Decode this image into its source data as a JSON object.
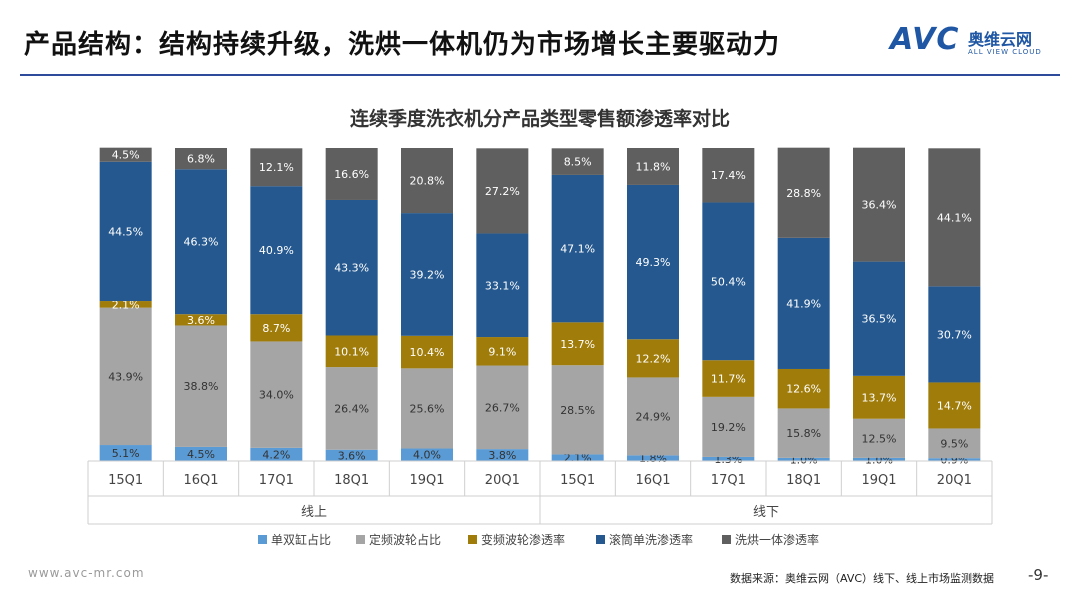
{
  "header": {
    "title": "产品结构：结构持续升级，洗烘一体机仍为市场增长主要驱动力"
  },
  "logo": {
    "mark": "AVC",
    "name_cn": "奥维云网",
    "name_en": "ALL VIEW CLOUD"
  },
  "footer": {
    "website": "www.avc-mr.com",
    "source": "数据来源：奥维云网（AVC）线下、线上市场监测数据",
    "page": "-9-"
  },
  "colors": {
    "s1": "#5b9bd5",
    "s2": "#a5a5a5",
    "s3": "#a07c0a",
    "s4": "#25588f",
    "s5": "#5f5f5f",
    "brand": "#1f57a4"
  },
  "chart_data": {
    "type": "bar",
    "stacked": true,
    "title": "连续季度洗衣机分产品类型零售额渗透率对比",
    "categories": [
      "15Q1",
      "16Q1",
      "17Q1",
      "18Q1",
      "19Q1",
      "20Q1",
      "15Q1",
      "16Q1",
      "17Q1",
      "18Q1",
      "19Q1",
      "20Q1"
    ],
    "groups": [
      {
        "label": "线上",
        "count": 6
      },
      {
        "label": "线下",
        "count": 6
      }
    ],
    "ylim": [
      0,
      100
    ],
    "legend_position": "bottom",
    "series": [
      {
        "name": "单双缸占比",
        "color": "#5b9bd5",
        "values": [
          5.1,
          4.5,
          4.2,
          3.6,
          4.0,
          3.8,
          2.1,
          1.8,
          1.3,
          1.0,
          1.0,
          0.9
        ]
      },
      {
        "name": "定频波轮占比",
        "color": "#a5a5a5",
        "values": [
          43.9,
          38.8,
          34.0,
          26.4,
          25.6,
          26.7,
          28.5,
          24.9,
          19.2,
          15.8,
          12.5,
          9.5
        ]
      },
      {
        "name": "变频波轮渗透率",
        "color": "#a07c0a",
        "values": [
          2.1,
          3.6,
          8.7,
          10.1,
          10.4,
          9.1,
          13.7,
          12.2,
          11.7,
          12.6,
          13.7,
          14.7
        ]
      },
      {
        "name": "滚筒单洗渗透率",
        "color": "#25588f",
        "values": [
          44.5,
          46.3,
          40.9,
          43.3,
          39.2,
          33.1,
          47.1,
          49.3,
          50.4,
          41.9,
          36.5,
          30.7
        ]
      },
      {
        "name": "洗烘一体渗透率",
        "color": "#5f5f5f",
        "values": [
          4.5,
          6.8,
          12.1,
          16.6,
          20.8,
          27.2,
          8.5,
          11.8,
          17.4,
          28.8,
          36.4,
          44.1
        ]
      }
    ],
    "data_labels": [
      [
        "5.1%",
        "4.5%",
        "4.2%",
        "3.6%",
        "4.0%",
        "3.8%",
        "2.1%",
        "1.8%",
        "1.3%",
        "1.0%",
        "1.0%",
        "0.9%"
      ],
      [
        "43.9%",
        "38.8%",
        "34.0%",
        "26.4%",
        "25.6%",
        "26.7%",
        "28.5%",
        "24.9%",
        "19.2%",
        "15.8%",
        "12.5%",
        "9.5%"
      ],
      [
        "2.1%",
        "3.6%",
        "8.7%",
        "10.1%",
        "10.4%",
        "9.1%",
        "13.7%",
        "12.2%",
        "11.7%",
        "12.6%",
        "13.7%",
        "14.7%"
      ],
      [
        "44.5%",
        "46.3%",
        "40.9%",
        "43.3%",
        "39.2%",
        "33.1%",
        "47.1%",
        "49.3%",
        "50.4%",
        "41.9%",
        "36.5%",
        "30.7%"
      ],
      [
        "4.5%",
        "6.8%",
        "12.1%",
        "16.6%",
        "20.8%",
        "27.2%",
        "8.5%",
        "11.8%",
        "17.4%",
        "28.8%",
        "36.4%",
        "44.1%"
      ]
    ]
  }
}
